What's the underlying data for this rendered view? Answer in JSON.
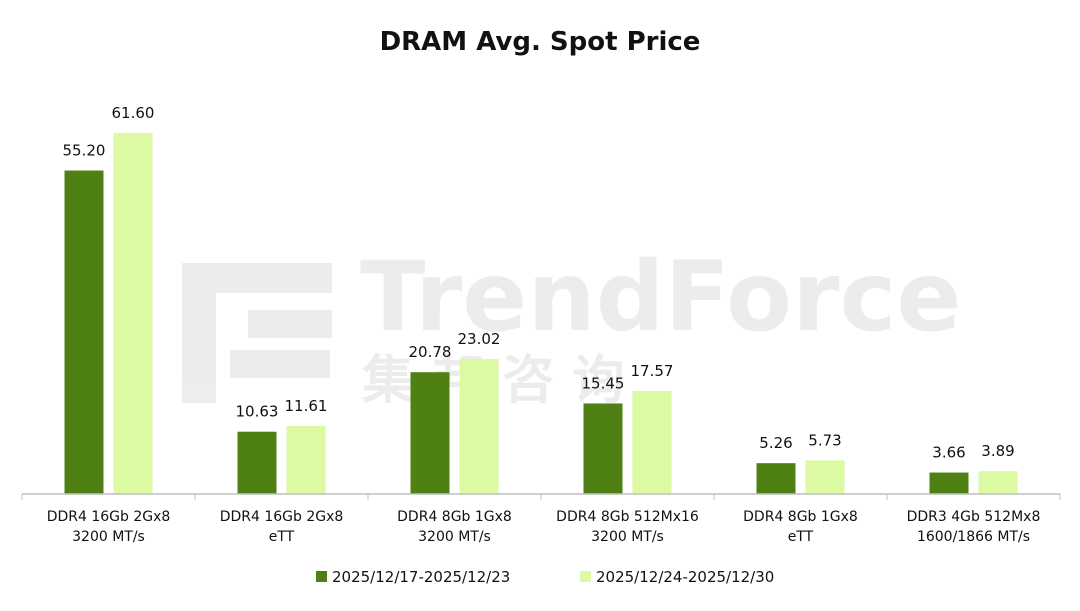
{
  "chart_data": {
    "type": "bar",
    "title": "DRAM Avg. Spot Price",
    "categories": [
      [
        "DDR4 16Gb 2Gx8",
        "3200 MT/s"
      ],
      [
        "DDR4 16Gb 2Gx8",
        "eTT"
      ],
      [
        "DDR4 8Gb 1Gx8",
        "3200 MT/s"
      ],
      [
        "DDR4 8Gb 512Mx16",
        "3200 MT/s"
      ],
      [
        "DDR4 8Gb 1Gx8",
        "eTT"
      ],
      [
        "DDR3 4Gb 512Mx8",
        "1600/1866 MT/s"
      ]
    ],
    "series": [
      {
        "name": "2025/12/17-2025/12/23",
        "color": "#4e8014",
        "values": [
          55.2,
          10.63,
          20.78,
          15.45,
          5.26,
          3.66
        ],
        "labels": [
          "55.20",
          "10.63",
          "20.78",
          "15.45",
          "5.26",
          "3.66"
        ]
      },
      {
        "name": "2025/12/24-2025/12/30",
        "color": "#dbfaa2",
        "values": [
          61.6,
          11.61,
          23.02,
          17.57,
          5.73,
          3.89
        ],
        "labels": [
          "61.60",
          "11.61",
          "23.02",
          "17.57",
          "5.73",
          "3.89"
        ]
      }
    ],
    "ylim": [
      0,
      61.6
    ],
    "xlabel": "",
    "ylabel": "",
    "grid": false,
    "legend_position": "bottom",
    "watermark": {
      "text": "TrendForce",
      "subtext": "集 邦 咨 询"
    }
  }
}
